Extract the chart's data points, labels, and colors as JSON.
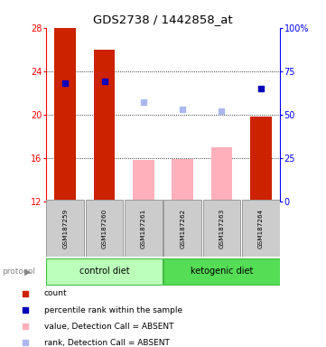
{
  "title": "GDS2738 / 1442858_at",
  "samples": [
    "GSM187259",
    "GSM187260",
    "GSM187261",
    "GSM187262",
    "GSM187263",
    "GSM187264"
  ],
  "bar_values": [
    28,
    26,
    15.8,
    15.9,
    17.0,
    19.8
  ],
  "bar_detected": [
    true,
    true,
    false,
    false,
    false,
    true
  ],
  "percentile_values_pct": [
    68,
    69,
    null,
    null,
    null,
    65
  ],
  "percentile_detected": [
    true,
    true,
    false,
    false,
    false,
    true
  ],
  "rank_values_pct": [
    null,
    null,
    57,
    53,
    52,
    null
  ],
  "ylim_left": [
    12,
    28
  ],
  "ylim_right": [
    0,
    100
  ],
  "yticks_left": [
    12,
    16,
    20,
    24,
    28
  ],
  "yticks_right": [
    0,
    25,
    50,
    75,
    100
  ],
  "ytick_labels_right": [
    "0",
    "25",
    "50",
    "75",
    "100%"
  ],
  "bar_color_detected": "#cc2200",
  "bar_color_absent": "#ffb0bb",
  "percentile_color_detected": "#0000bb",
  "percentile_color_absent": "#aab8ee",
  "rank_color_absent": "#aab8ee",
  "group_colors": {
    "control diet": "#bbffbb",
    "ketogenic diet": "#55dd55"
  },
  "legend_items": [
    {
      "label": "count",
      "color": "#cc2200"
    },
    {
      "label": "percentile rank within the sample",
      "color": "#0000bb"
    },
    {
      "label": "value, Detection Call = ABSENT",
      "color": "#ffb0bb"
    },
    {
      "label": "rank, Detection Call = ABSENT",
      "color": "#aab8ee"
    }
  ],
  "sample_box_color": "#cccccc",
  "bar_width": 0.55
}
